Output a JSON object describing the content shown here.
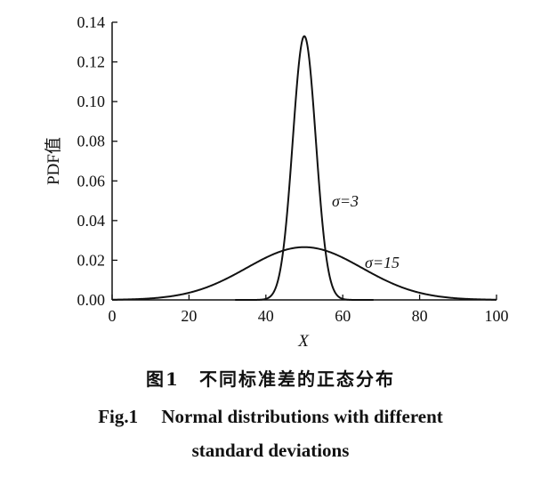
{
  "chart_data": {
    "type": "line",
    "xlabel": "X",
    "ylabel": "PDF值",
    "xlim": [
      0,
      100
    ],
    "ylim": [
      0,
      0.14
    ],
    "x_ticks": [
      "0",
      "20",
      "40",
      "60",
      "80",
      "100"
    ],
    "y_ticks": [
      "0.00",
      "0.02",
      "0.04",
      "0.06",
      "0.08",
      "0.10",
      "0.12",
      "0.14"
    ],
    "grid": false,
    "legend": "none",
    "series": [
      {
        "label": "σ=3",
        "mean": 50,
        "sigma": 3,
        "x": [
          35,
          40,
          42,
          44,
          45,
          46,
          47,
          48,
          49,
          50,
          51,
          52,
          53,
          54,
          55,
          56,
          58,
          60,
          65
        ],
        "y": [
          0.0,
          0.0005,
          0.0038,
          0.018,
          0.0332,
          0.0547,
          0.0807,
          0.1065,
          0.1258,
          0.133,
          0.1258,
          0.1065,
          0.0807,
          0.0547,
          0.0332,
          0.018,
          0.0038,
          0.0005,
          0.0
        ]
      },
      {
        "label": "σ=15",
        "mean": 50,
        "sigma": 15,
        "x": [
          0,
          5,
          10,
          15,
          20,
          25,
          30,
          35,
          40,
          45,
          50,
          55,
          60,
          65,
          70,
          75,
          80,
          85,
          90,
          95,
          100
        ],
        "y": [
          0.0001,
          0.0003,
          0.0011,
          0.0017,
          0.0036,
          0.0067,
          0.0109,
          0.0161,
          0.0213,
          0.0252,
          0.0266,
          0.0252,
          0.0213,
          0.0161,
          0.0109,
          0.0067,
          0.0036,
          0.0017,
          0.0011,
          0.0003,
          0.0001
        ]
      }
    ]
  },
  "caption": {
    "cn": "图1　不同标准差的正态分布",
    "en_line1": "Fig.1　 Normal distributions with different",
    "en_line2": "standard deviations"
  }
}
